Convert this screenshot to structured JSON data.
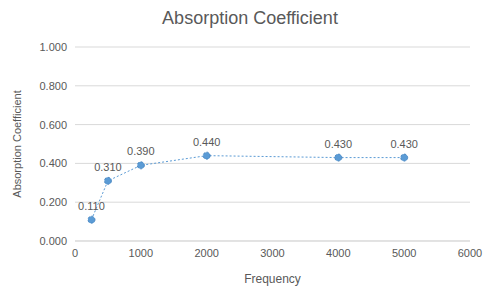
{
  "chart_data": {
    "type": "line",
    "title": "Absorption Coefficient",
    "x_label": "Frequency",
    "y_label": "Absorption Coefficient",
    "x": [
      250,
      500,
      1000,
      2000,
      4000,
      5000
    ],
    "values": [
      0.11,
      0.31,
      0.39,
      0.44,
      0.43,
      0.43
    ],
    "value_labels": [
      "0.110",
      "0.310",
      "0.390",
      "0.440",
      "0.430",
      "0.430"
    ],
    "color": "#5b9bd5",
    "marker": "circle",
    "line_style": "dotted",
    "data_labels": true,
    "grid": true,
    "xlim": [
      0,
      6000
    ],
    "xticks": [
      0,
      1000,
      2000,
      3000,
      4000,
      5000,
      6000
    ],
    "ylim": [
      0,
      1
    ],
    "yticks": [
      {
        "value": 0,
        "label": "0.000"
      },
      {
        "value": 0.2,
        "label": "0.200"
      },
      {
        "value": 0.4,
        "label": "0.400"
      },
      {
        "value": 0.6,
        "label": "0.600"
      },
      {
        "value": 0.8,
        "label": "0.800"
      },
      {
        "value": 1,
        "label": "1.000"
      }
    ]
  }
}
